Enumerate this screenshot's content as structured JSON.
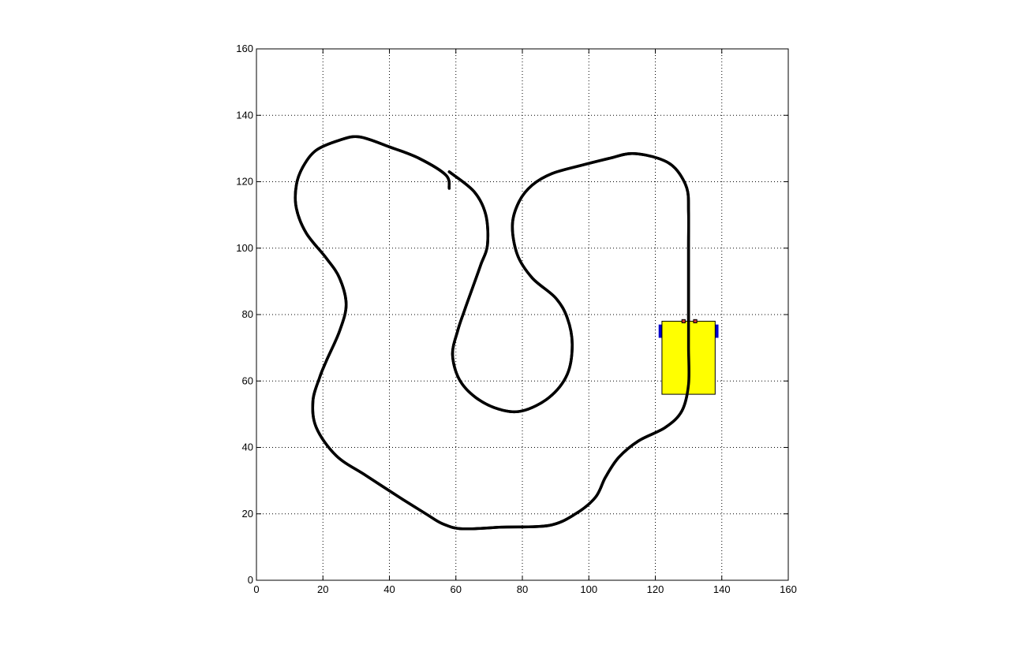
{
  "chart_data": {
    "type": "line",
    "title": "",
    "xlabel": "",
    "ylabel": "",
    "xlim": [
      0,
      160
    ],
    "ylim": [
      0,
      160
    ],
    "grid": true,
    "grid_style": "dotted",
    "x_ticks": [
      0,
      20,
      40,
      60,
      80,
      100,
      120,
      140,
      160
    ],
    "y_ticks": [
      0,
      20,
      40,
      60,
      80,
      100,
      120,
      140,
      160
    ],
    "colors": {
      "track": "#000000",
      "vehicle_body": "#ffff00",
      "vehicle_wheels": "#0000cc",
      "vehicle_sensors": "#cc3333",
      "grid": "#000000"
    },
    "series": [
      {
        "points": [
          [
            58,
            118
          ],
          [
            57,
            122
          ],
          [
            49,
            127
          ],
          [
            40,
            130.5
          ],
          [
            31,
            133.5
          ],
          [
            25,
            132.5
          ],
          [
            18,
            129.5
          ],
          [
            14,
            124.5
          ],
          [
            12,
            119
          ],
          [
            12,
            112
          ],
          [
            15,
            104.5
          ],
          [
            21,
            97
          ],
          [
            25,
            91
          ],
          [
            27,
            83
          ],
          [
            25,
            75
          ],
          [
            21,
            66
          ],
          [
            19,
            61
          ],
          [
            17,
            54
          ],
          [
            18,
            46
          ],
          [
            24,
            37.5
          ],
          [
            33,
            31.5
          ],
          [
            43,
            25
          ],
          [
            51,
            20
          ],
          [
            56,
            17
          ],
          [
            62,
            15.5
          ],
          [
            74,
            16
          ],
          [
            88,
            16.5
          ],
          [
            96,
            20
          ],
          [
            102,
            25
          ],
          [
            105,
            31
          ],
          [
            109,
            37
          ],
          [
            115,
            42
          ],
          [
            123,
            46
          ],
          [
            128,
            51
          ],
          [
            130,
            59
          ],
          [
            130,
            70
          ],
          [
            130,
            79
          ],
          [
            130,
            90
          ],
          [
            130,
            101
          ],
          [
            130,
            111
          ],
          [
            129.5,
            118
          ],
          [
            126,
            124
          ],
          [
            121,
            127
          ],
          [
            113,
            128.5
          ],
          [
            106,
            127
          ],
          [
            98,
            125
          ],
          [
            89,
            122.5
          ],
          [
            83,
            119
          ],
          [
            79,
            114
          ],
          [
            77,
            107
          ],
          [
            78.5,
            98
          ],
          [
            83,
            91
          ],
          [
            90,
            85
          ],
          [
            93.5,
            79
          ],
          [
            95,
            71
          ],
          [
            93.5,
            62
          ],
          [
            88,
            55
          ],
          [
            80,
            51
          ],
          [
            73,
            51.5
          ],
          [
            66,
            55
          ],
          [
            61,
            60.5
          ],
          [
            59,
            68
          ],
          [
            60.5,
            75
          ],
          [
            62.5,
            81
          ],
          [
            65,
            88
          ],
          [
            67.5,
            95
          ],
          [
            69.5,
            101
          ],
          [
            69,
            110
          ],
          [
            65.5,
            117
          ],
          [
            58,
            123
          ]
        ]
      }
    ],
    "vehicle": {
      "body": {
        "x": [
          122,
          138
        ],
        "y": [
          56,
          78
        ]
      },
      "wheels": [
        {
          "x": [
            121,
            122
          ],
          "y": [
            73,
            77
          ]
        },
        {
          "x": [
            138,
            139
          ],
          "y": [
            73,
            77
          ]
        }
      ],
      "sensors": [
        {
          "x": [
            128,
            129
          ],
          "y": [
            77.5,
            78.5
          ]
        },
        {
          "x": [
            131.5,
            132.5
          ],
          "y": [
            77.5,
            78.5
          ]
        }
      ]
    }
  }
}
